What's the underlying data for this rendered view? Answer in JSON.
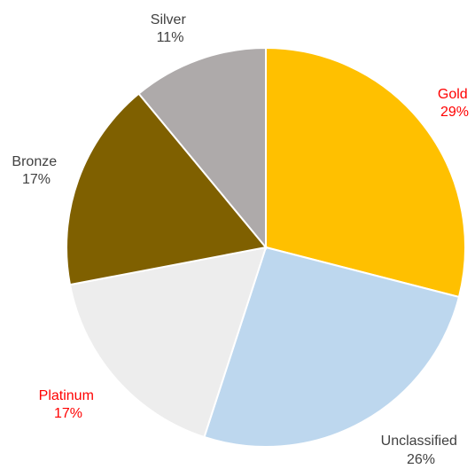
{
  "chart_data": {
    "type": "pie",
    "start_angle_deg": 0,
    "direction": "clockwise",
    "slices": [
      {
        "label": "Gold",
        "pct_text": "29%",
        "value": 29,
        "color": "#FFC000",
        "label_color": "#FF0000"
      },
      {
        "label": "Unclassified",
        "pct_text": "26%",
        "value": 26,
        "color": "#BDD7EE",
        "label_color": "#404040"
      },
      {
        "label": "Platinum",
        "pct_text": "17%",
        "value": 17,
        "color": "#EDEDED",
        "label_color": "#FF0000"
      },
      {
        "label": "Bronze",
        "pct_text": "17%",
        "value": 17,
        "color": "#7F6000",
        "label_color": "#404040"
      },
      {
        "label": "Silver",
        "pct_text": "11%",
        "value": 11,
        "color": "#AEAAAA",
        "label_color": "#404040"
      }
    ],
    "legend": "none"
  }
}
